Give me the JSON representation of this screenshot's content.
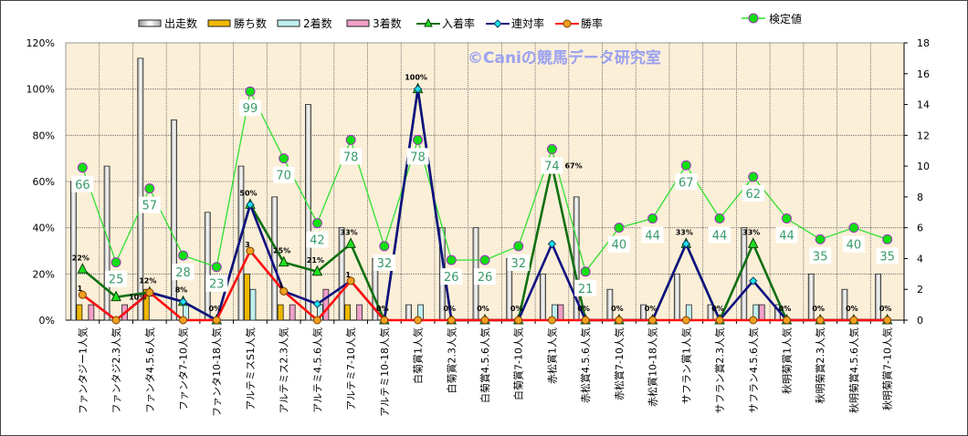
{
  "chart_data": {
    "type": "bar",
    "title": "",
    "watermark": "©Caniの競馬データ研究室",
    "categories": [
      "ファンタジー1人気",
      "ファンタジ2.3人気",
      "ファンタ4.5.6人気",
      "ファンタ7-10人気",
      "ファンタ10-18人気",
      "アルテミスS1人気",
      "アルテミス2.3人気",
      "アルテミ4.5.6人気",
      "アルテミ7-10人気",
      "アルテミ10-18人気",
      "白菊賞1人気",
      "白菊賞2.3人気",
      "白菊賞4.5.6人気",
      "白菊賞7-10人気",
      "赤松賞1人気",
      "赤松賞4.5.6人気",
      "赤松賞7-10人気",
      "赤松賞10-18人気",
      "サフラン賞1人気",
      "サフラン賞2.3人気",
      "サフラン4.5.6人気",
      "秋明菊賞1人気",
      "秋明菊賞2.3人気",
      "秋明菊賞4.5.6人気",
      "秋明菊賞7-10人気"
    ],
    "left_axis": {
      "ylim": [
        0,
        120
      ],
      "ticks": [
        "0%",
        "20%",
        "40%",
        "60%",
        "80%",
        "100%",
        "120%"
      ]
    },
    "right_axis": {
      "ylim": [
        0,
        18
      ],
      "ticks": [
        "0",
        "2",
        "4",
        "6",
        "8",
        "10",
        "12",
        "14",
        "16",
        "18"
      ]
    },
    "series": [
      {
        "name": "出走数",
        "kind": "bar",
        "axis": "right",
        "color": "#f0f0f0",
        "values": [
          9,
          10,
          17,
          13,
          7,
          10,
          8,
          14,
          6,
          4,
          1,
          6,
          6,
          4,
          3,
          8,
          2,
          1,
          3,
          1,
          6,
          1,
          3,
          2,
          3
        ]
      },
      {
        "name": "勝ち数",
        "kind": "bar",
        "axis": "right",
        "color": "#f0b800",
        "values": [
          1,
          0,
          2,
          0,
          0,
          3,
          1,
          0,
          1,
          0,
          0,
          0,
          0,
          0,
          0,
          0,
          0,
          0,
          0,
          0,
          0,
          0,
          0,
          0,
          0
        ]
      },
      {
        "name": "2着数",
        "kind": "bar",
        "axis": "right",
        "color": "#c0f0f0",
        "values": [
          0,
          0,
          0,
          1,
          0,
          2,
          0,
          1,
          0,
          0,
          1,
          0,
          0,
          0,
          1,
          0,
          0,
          0,
          1,
          0,
          1,
          0,
          0,
          0,
          0
        ]
      },
      {
        "name": "3着数",
        "kind": "bar",
        "axis": "right",
        "color": "#f0a0c8",
        "values": [
          1,
          1,
          0,
          0,
          0,
          0,
          1,
          2,
          1,
          0,
          0,
          0,
          0,
          0,
          1,
          0,
          0,
          0,
          0,
          0,
          1,
          0,
          0,
          0,
          0
        ]
      },
      {
        "name": "入着率",
        "kind": "line",
        "axis": "left",
        "color": "#107010",
        "values": [
          22,
          10,
          12,
          8,
          0,
          50,
          25,
          21,
          33,
          0,
          100,
          0,
          0,
          0,
          67,
          0,
          0,
          0,
          33,
          0,
          33,
          0,
          0,
          0,
          0
        ],
        "labels": [
          "22%",
          "10%",
          "12%",
          "8%",
          "0%",
          "50%",
          "25%",
          "21%",
          "33%",
          "0%",
          "100%",
          "0%",
          "0%",
          "0%",
          "67%",
          "0%",
          "0%",
          "0%",
          "33%",
          "0%",
          "33%",
          "0%",
          "0%",
          "0%",
          "0%"
        ]
      },
      {
        "name": "連対率",
        "kind": "line",
        "axis": "left",
        "color": "#101080",
        "values": [
          11,
          0,
          12,
          8,
          0,
          50,
          12.5,
          7,
          17,
          0,
          100,
          0,
          0,
          0,
          33,
          0,
          0,
          0,
          33,
          0,
          17,
          0,
          0,
          0,
          0
        ]
      },
      {
        "name": "勝率",
        "kind": "line",
        "axis": "left",
        "color": "#ff1010",
        "values": [
          11,
          0,
          12,
          0,
          0,
          30,
          12.5,
          0,
          17,
          0,
          0,
          0,
          0,
          0,
          0,
          0,
          0,
          0,
          0,
          0,
          0,
          0,
          0,
          0,
          0
        ],
        "labels": [
          "1",
          "",
          "",
          "",
          "",
          "3",
          "1",
          "",
          "1",
          "",
          "",
          "",
          "",
          "",
          "",
          "",
          "",
          "",
          "",
          "",
          "",
          "",
          "",
          "",
          ""
        ]
      },
      {
        "name": "検定値",
        "kind": "line",
        "axis": "left",
        "color": "#30e030",
        "values": [
          66,
          25,
          57,
          28,
          23,
          99,
          70,
          42,
          78,
          32,
          78,
          26,
          26,
          32,
          74,
          21,
          40,
          44,
          67,
          44,
          62,
          44,
          35,
          40,
          35
        ],
        "labels": [
          "66",
          "25",
          "57",
          "28",
          "23",
          "99",
          "70",
          "42",
          "78",
          "32",
          "78",
          "26",
          "26",
          "32",
          "74",
          "21",
          "40",
          "44",
          "67",
          "44",
          "62",
          "44",
          "35",
          "40",
          "35"
        ]
      }
    ],
    "grid": true,
    "legend": "top"
  }
}
